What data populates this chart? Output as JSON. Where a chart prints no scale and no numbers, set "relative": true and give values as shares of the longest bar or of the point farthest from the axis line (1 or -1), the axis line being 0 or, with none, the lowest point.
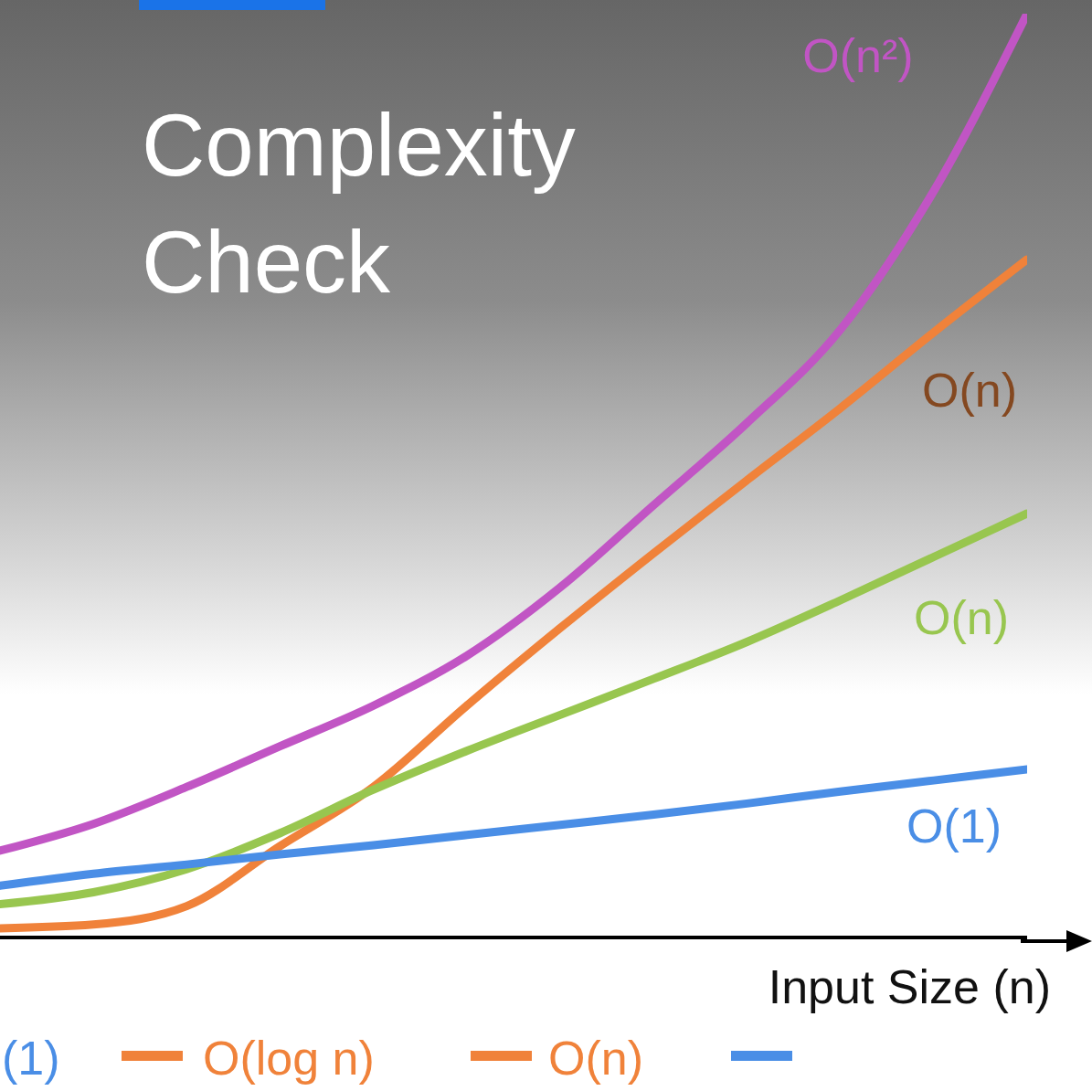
{
  "chart_data": {
    "type": "line",
    "title": "Complexity Check",
    "xlabel": "Input Size (n)",
    "relative": true,
    "categories": [
      null,
      null,
      null,
      null,
      null,
      null,
      null,
      null,
      null,
      null,
      null,
      null
    ],
    "series": [
      {
        "name": "O(n²)",
        "color": "#c155c4",
        "values": [
          0.094,
          0.123,
          0.163,
          0.207,
          0.251,
          0.305,
          0.379,
          0.468,
          0.557,
          0.658,
          0.808,
          1.0
        ]
      },
      {
        "name": "O(n)",
        "color": "#f0823a",
        "values": [
          0.01,
          0.014,
          0.034,
          0.099,
          0.163,
          0.251,
          0.335,
          0.416,
          0.495,
          0.573,
          0.655,
          0.734
        ]
      },
      {
        "name": "O(n)",
        "color": "#98c64f",
        "values": [
          0.036,
          0.049,
          0.074,
          0.113,
          0.16,
          0.202,
          0.241,
          0.28,
          0.32,
          0.365,
          0.412,
          0.459
        ]
      },
      {
        "name": "O(1)",
        "color": "#4a8ee6",
        "values": [
          0.056,
          0.069,
          0.079,
          0.09,
          0.1,
          0.111,
          0.122,
          0.133,
          0.145,
          0.158,
          0.17,
          0.182
        ]
      }
    ],
    "annotations": [
      "(1)",
      "O(log n)",
      "O(n)"
    ]
  }
}
